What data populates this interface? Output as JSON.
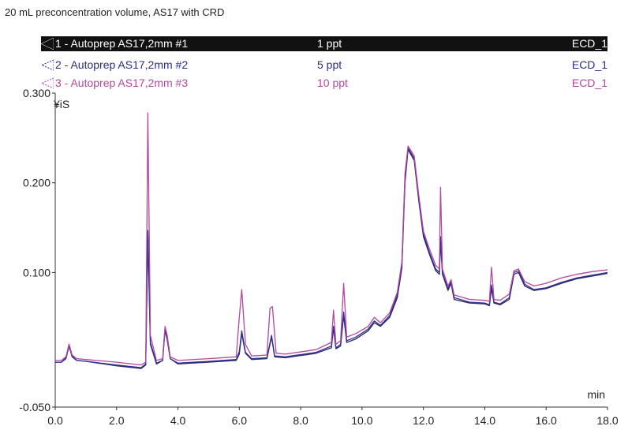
{
  "chart_data": {
    "type": "line",
    "title": "20 mL preconcentration volume, AS17 with CRD",
    "xlabel": "min",
    "ylabel": "¥iS",
    "xlim": [
      0,
      18
    ],
    "ylim": [
      -0.05,
      0.3
    ],
    "xticks": [
      0,
      2,
      4,
      6,
      8,
      10,
      12,
      14,
      16,
      18
    ],
    "xtick_labels": [
      "0.0",
      "2.0",
      "4.0",
      "6.0",
      "8.0",
      "10.0",
      "12.0",
      "14.0",
      "16.0",
      "18.0"
    ],
    "yticks": [
      -0.05,
      0.1,
      0.2,
      0.3
    ],
    "ytick_labels": [
      "-0.050",
      "0.100",
      "0.200",
      "0.300"
    ],
    "legend": [
      {
        "name": "1 - Autoprep AS17,2mm #1",
        "amount": "1 ppt",
        "detector": "ECD_1"
      },
      {
        "name": "2 - Autoprep AS17,2mm #2",
        "amount": "5 ppt",
        "detector": "ECD_1"
      },
      {
        "name": "3 - Autoprep AS17,2mm #3",
        "amount": "10 ppt",
        "detector": "ECD_1"
      }
    ],
    "series": [
      {
        "color": "#2b2b4f",
        "points": [
          [
            0,
            0.0
          ],
          [
            0.2,
            0.0
          ],
          [
            0.35,
            0.004
          ],
          [
            0.45,
            0.018
          ],
          [
            0.55,
            0.006
          ],
          [
            0.7,
            0.002
          ],
          [
            1.0,
            0.001
          ],
          [
            2.0,
            -0.004
          ],
          [
            2.8,
            -0.007
          ],
          [
            2.95,
            -0.003
          ],
          [
            3.02,
            0.143
          ],
          [
            3.1,
            0.02
          ],
          [
            3.3,
            -0.002
          ],
          [
            3.5,
            0.002
          ],
          [
            3.58,
            0.036
          ],
          [
            3.65,
            0.025
          ],
          [
            3.75,
            0.004
          ],
          [
            4.0,
            -0.002
          ],
          [
            5.0,
            0.0
          ],
          [
            5.9,
            0.002
          ],
          [
            6.0,
            0.009
          ],
          [
            6.08,
            0.032
          ],
          [
            6.2,
            0.01
          ],
          [
            6.4,
            0.003
          ],
          [
            6.9,
            0.004
          ],
          [
            7.05,
            0.028
          ],
          [
            7.15,
            0.006
          ],
          [
            7.5,
            0.005
          ],
          [
            8.5,
            0.01
          ],
          [
            9.0,
            0.016
          ],
          [
            9.07,
            0.038
          ],
          [
            9.15,
            0.015
          ],
          [
            9.3,
            0.018
          ],
          [
            9.4,
            0.052
          ],
          [
            9.5,
            0.022
          ],
          [
            9.8,
            0.026
          ],
          [
            10.2,
            0.035
          ],
          [
            10.4,
            0.044
          ],
          [
            10.6,
            0.04
          ],
          [
            10.9,
            0.05
          ],
          [
            11.15,
            0.072
          ],
          [
            11.3,
            0.105
          ],
          [
            11.4,
            0.2
          ],
          [
            11.5,
            0.237
          ],
          [
            11.7,
            0.225
          ],
          [
            11.85,
            0.18
          ],
          [
            12.0,
            0.14
          ],
          [
            12.2,
            0.12
          ],
          [
            12.4,
            0.102
          ],
          [
            12.52,
            0.098
          ],
          [
            12.56,
            0.135
          ],
          [
            12.62,
            0.098
          ],
          [
            12.8,
            0.08
          ],
          [
            12.9,
            0.088
          ],
          [
            13.0,
            0.07
          ],
          [
            13.5,
            0.066
          ],
          [
            14.0,
            0.065
          ],
          [
            14.15,
            0.063
          ],
          [
            14.22,
            0.082
          ],
          [
            14.3,
            0.066
          ],
          [
            14.5,
            0.064
          ],
          [
            14.8,
            0.07
          ],
          [
            14.95,
            0.098
          ],
          [
            15.1,
            0.1
          ],
          [
            15.3,
            0.085
          ],
          [
            15.6,
            0.08
          ],
          [
            16.0,
            0.082
          ],
          [
            16.5,
            0.088
          ],
          [
            17.0,
            0.093
          ],
          [
            17.5,
            0.096
          ],
          [
            18.0,
            0.099
          ]
        ]
      },
      {
        "color": "#2f2f9a",
        "points": [
          [
            0,
            0.0
          ],
          [
            0.2,
            0.0
          ],
          [
            0.35,
            0.005
          ],
          [
            0.45,
            0.02
          ],
          [
            0.55,
            0.007
          ],
          [
            0.7,
            0.002
          ],
          [
            1.0,
            0.001
          ],
          [
            2.0,
            -0.003
          ],
          [
            2.8,
            -0.006
          ],
          [
            2.95,
            -0.002
          ],
          [
            3.02,
            0.147
          ],
          [
            3.1,
            0.022
          ],
          [
            3.3,
            -0.001
          ],
          [
            3.5,
            0.002
          ],
          [
            3.58,
            0.038
          ],
          [
            3.65,
            0.027
          ],
          [
            3.75,
            0.004
          ],
          [
            4.0,
            -0.001
          ],
          [
            5.0,
            0.001
          ],
          [
            5.9,
            0.003
          ],
          [
            6.0,
            0.012
          ],
          [
            6.08,
            0.035
          ],
          [
            6.2,
            0.011
          ],
          [
            6.4,
            0.004
          ],
          [
            6.9,
            0.005
          ],
          [
            7.05,
            0.03
          ],
          [
            7.15,
            0.007
          ],
          [
            7.5,
            0.006
          ],
          [
            8.5,
            0.011
          ],
          [
            9.0,
            0.018
          ],
          [
            9.07,
            0.04
          ],
          [
            9.15,
            0.016
          ],
          [
            9.3,
            0.02
          ],
          [
            9.4,
            0.056
          ],
          [
            9.5,
            0.024
          ],
          [
            9.8,
            0.028
          ],
          [
            10.2,
            0.037
          ],
          [
            10.4,
            0.046
          ],
          [
            10.6,
            0.041
          ],
          [
            10.9,
            0.052
          ],
          [
            11.15,
            0.075
          ],
          [
            11.3,
            0.11
          ],
          [
            11.4,
            0.205
          ],
          [
            11.5,
            0.239
          ],
          [
            11.7,
            0.227
          ],
          [
            11.85,
            0.183
          ],
          [
            12.0,
            0.143
          ],
          [
            12.2,
            0.122
          ],
          [
            12.4,
            0.104
          ],
          [
            12.52,
            0.1
          ],
          [
            12.56,
            0.14
          ],
          [
            12.62,
            0.1
          ],
          [
            12.8,
            0.082
          ],
          [
            12.9,
            0.09
          ],
          [
            13.0,
            0.072
          ],
          [
            13.5,
            0.067
          ],
          [
            14.0,
            0.066
          ],
          [
            14.15,
            0.064
          ],
          [
            14.22,
            0.086
          ],
          [
            14.3,
            0.067
          ],
          [
            14.5,
            0.065
          ],
          [
            14.8,
            0.072
          ],
          [
            14.95,
            0.1
          ],
          [
            15.1,
            0.102
          ],
          [
            15.3,
            0.087
          ],
          [
            15.6,
            0.081
          ],
          [
            16.0,
            0.083
          ],
          [
            16.5,
            0.089
          ],
          [
            17.0,
            0.094
          ],
          [
            17.5,
            0.097
          ],
          [
            18.0,
            0.1
          ]
        ]
      },
      {
        "color": "#b4479f",
        "points": [
          [
            0,
            0.002
          ],
          [
            0.2,
            0.002
          ],
          [
            0.35,
            0.006
          ],
          [
            0.45,
            0.02
          ],
          [
            0.55,
            0.008
          ],
          [
            0.7,
            0.004
          ],
          [
            1.0,
            0.003
          ],
          [
            2.0,
            0.0
          ],
          [
            2.8,
            -0.003
          ],
          [
            2.95,
            0.0
          ],
          [
            3.02,
            0.278
          ],
          [
            3.1,
            0.03
          ],
          [
            3.3,
            0.002
          ],
          [
            3.5,
            0.004
          ],
          [
            3.58,
            0.04
          ],
          [
            3.65,
            0.03
          ],
          [
            3.75,
            0.006
          ],
          [
            4.0,
            0.002
          ],
          [
            5.0,
            0.004
          ],
          [
            5.9,
            0.006
          ],
          [
            6.0,
            0.05
          ],
          [
            6.08,
            0.081
          ],
          [
            6.2,
            0.02
          ],
          [
            6.4,
            0.007
          ],
          [
            6.9,
            0.008
          ],
          [
            7.0,
            0.06
          ],
          [
            7.08,
            0.062
          ],
          [
            7.2,
            0.01
          ],
          [
            7.5,
            0.009
          ],
          [
            8.5,
            0.014
          ],
          [
            9.0,
            0.022
          ],
          [
            9.07,
            0.058
          ],
          [
            9.15,
            0.02
          ],
          [
            9.3,
            0.024
          ],
          [
            9.4,
            0.088
          ],
          [
            9.5,
            0.028
          ],
          [
            9.8,
            0.032
          ],
          [
            10.2,
            0.04
          ],
          [
            10.4,
            0.05
          ],
          [
            10.6,
            0.044
          ],
          [
            10.9,
            0.055
          ],
          [
            11.15,
            0.078
          ],
          [
            11.3,
            0.112
          ],
          [
            11.4,
            0.21
          ],
          [
            11.5,
            0.241
          ],
          [
            11.7,
            0.23
          ],
          [
            11.85,
            0.186
          ],
          [
            12.0,
            0.146
          ],
          [
            12.2,
            0.126
          ],
          [
            12.4,
            0.108
          ],
          [
            12.52,
            0.104
          ],
          [
            12.56,
            0.195
          ],
          [
            12.62,
            0.104
          ],
          [
            12.8,
            0.085
          ],
          [
            12.9,
            0.092
          ],
          [
            13.0,
            0.075
          ],
          [
            13.5,
            0.07
          ],
          [
            14.0,
            0.069
          ],
          [
            14.15,
            0.068
          ],
          [
            14.22,
            0.106
          ],
          [
            14.3,
            0.07
          ],
          [
            14.5,
            0.069
          ],
          [
            14.8,
            0.076
          ],
          [
            14.95,
            0.102
          ],
          [
            15.1,
            0.104
          ],
          [
            15.3,
            0.09
          ],
          [
            15.6,
            0.085
          ],
          [
            16.0,
            0.088
          ],
          [
            16.5,
            0.094
          ],
          [
            17.0,
            0.098
          ],
          [
            17.5,
            0.101
          ],
          [
            18.0,
            0.103
          ]
        ]
      }
    ]
  }
}
